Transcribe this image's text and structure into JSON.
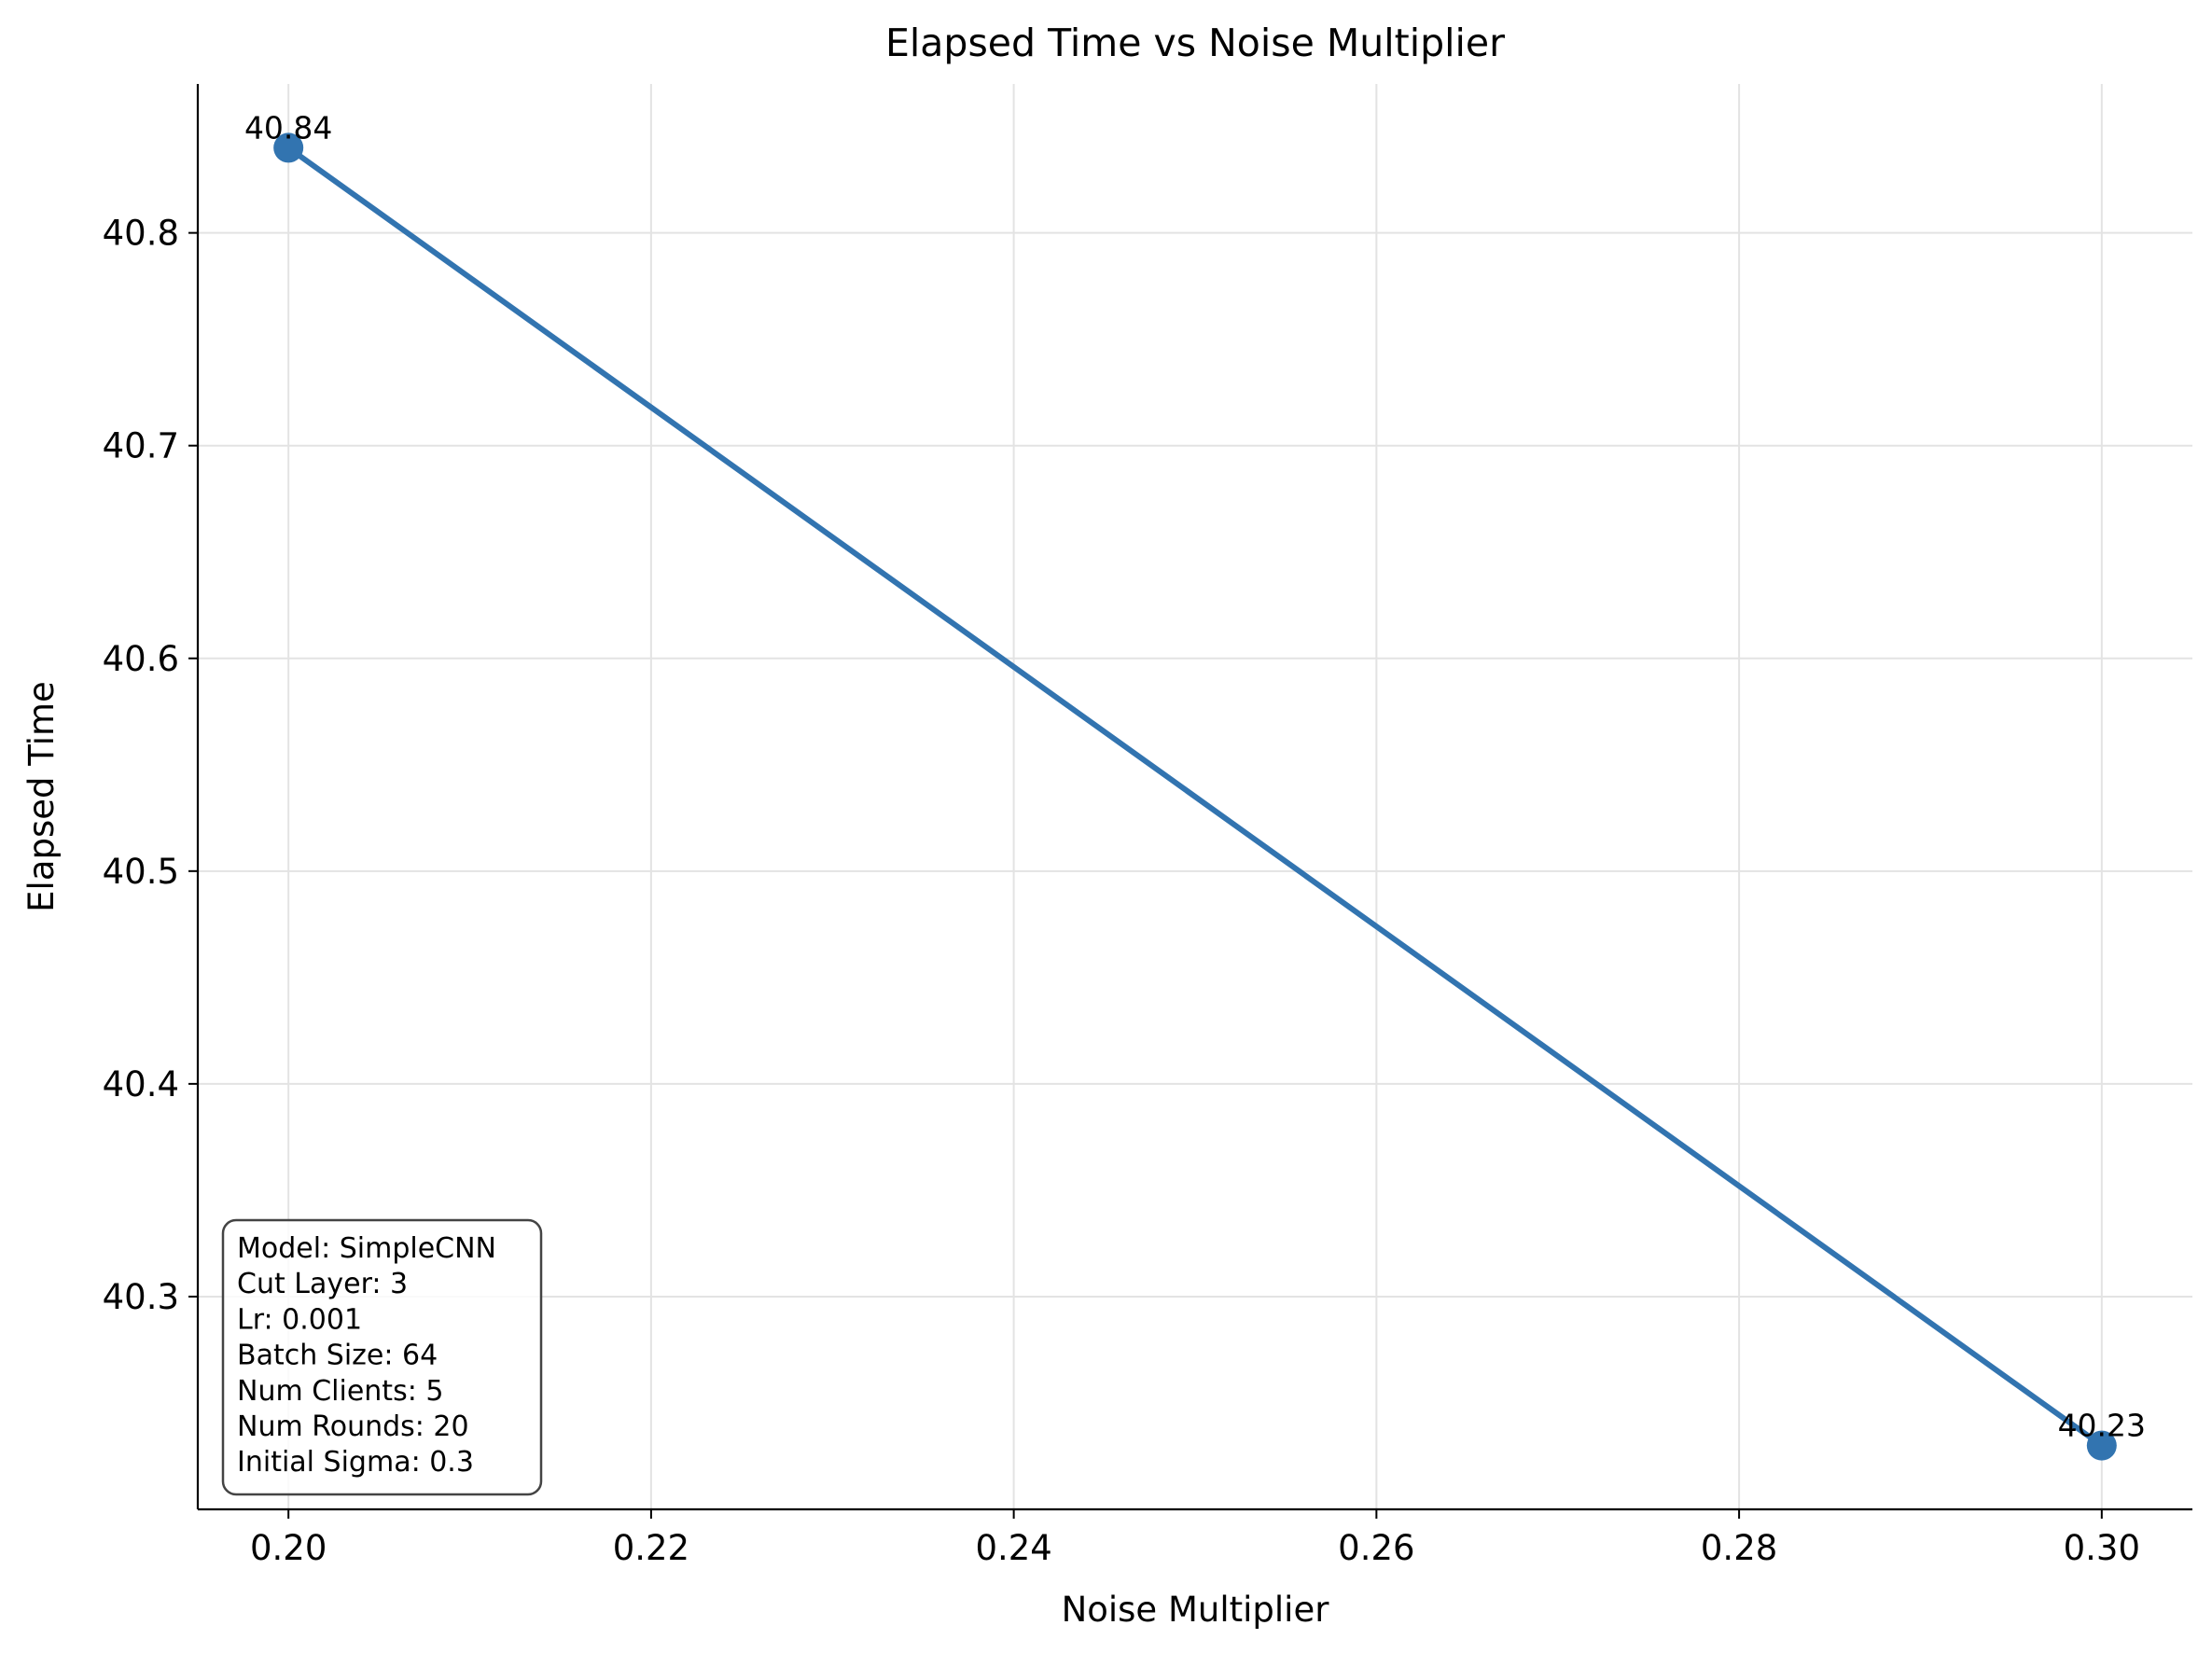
{
  "chart_data": {
    "type": "line",
    "title": "Elapsed Time vs Noise Multiplier",
    "xlabel": "Noise Multiplier",
    "ylabel": "Elapsed Time",
    "x": [
      0.2,
      0.3
    ],
    "series": [
      {
        "values": [
          40.84,
          40.23
        ],
        "color": "#3274b0"
      }
    ],
    "data_labels": [
      "40.84",
      "40.23"
    ],
    "xlim": [
      0.195,
      0.305
    ],
    "ylim": [
      40.2,
      40.87
    ],
    "xticks": [
      0.2,
      0.22,
      0.24,
      0.26,
      0.28,
      0.3
    ],
    "xtick_labels": [
      "0.20",
      "0.22",
      "0.24",
      "0.26",
      "0.28",
      "0.30"
    ],
    "yticks": [
      40.3,
      40.4,
      40.5,
      40.6,
      40.7,
      40.8
    ],
    "ytick_labels": [
      "40.3",
      "40.4",
      "40.5",
      "40.6",
      "40.7",
      "40.8"
    ],
    "grid": true,
    "annotation_box": {
      "placement": "bottom-left",
      "lines": [
        "Model: SimpleCNN",
        "Cut Layer: 3",
        "Lr: 0.001",
        "Batch Size: 64",
        "Num Clients: 5",
        "Num Rounds: 20",
        "Initial Sigma: 0.3"
      ]
    }
  }
}
